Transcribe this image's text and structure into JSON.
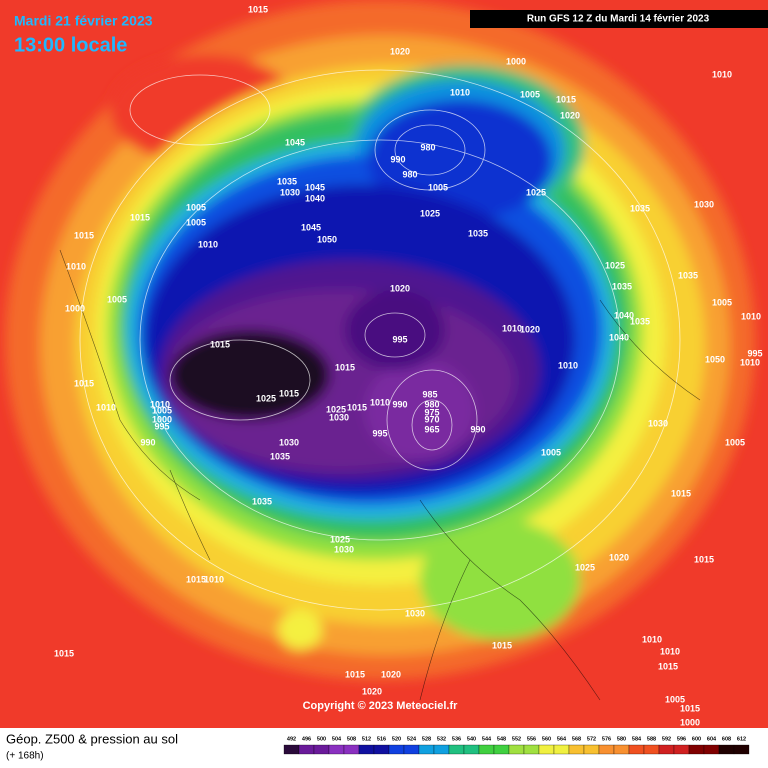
{
  "header": {
    "date": "Mardi 21 février 2023",
    "time": "13:00 locale",
    "run": "Run GFS 12 Z du Mardi 14 février 2023"
  },
  "isobar_labels": [
    1015,
    1020,
    1000,
    1010,
    1010,
    1005,
    1015,
    1020,
    1045,
    980,
    990,
    980,
    1005,
    1035,
    1030,
    1045,
    1040,
    1025,
    1005,
    1015,
    1005,
    1025,
    1035,
    1030,
    1045,
    1035,
    1015,
    1010,
    1050,
    1025,
    1010,
    1035,
    1020,
    1035,
    1005,
    1005,
    1000,
    1040,
    1010,
    1020,
    1035,
    1040,
    1010,
    995,
    1015,
    995,
    1010,
    1050,
    1010,
    1015,
    1015,
    985,
    1015,
    1025,
    1010,
    1010,
    1010,
    1005,
    1025,
    1015,
    980,
    975,
    1000,
    1030,
    990,
    995,
    970,
    965,
    990,
    1030,
    995,
    990,
    1030,
    1005,
    1035,
    1005,
    1015,
    1035,
    1025,
    1030,
    1020,
    1015,
    1025,
    1015,
    1010,
    1030,
    1010,
    1015,
    1015,
    1010,
    1015,
    1015,
    1020,
    1020,
    1005,
    1015,
    1000
  ],
  "copyright": "Copyright © 2023 Meteociel.fr",
  "footer": {
    "title": "Géop. Z500 & pression au sol",
    "subtitle": "(+ 168h)"
  },
  "colorbar": {
    "ticks": [
      492,
      496,
      500,
      504,
      508,
      512,
      516,
      520,
      524,
      528,
      532,
      536,
      540,
      544,
      548,
      552,
      556,
      560,
      564,
      568,
      572,
      576,
      580,
      584,
      588,
      592,
      596,
      600,
      604,
      608,
      612
    ]
  }
}
